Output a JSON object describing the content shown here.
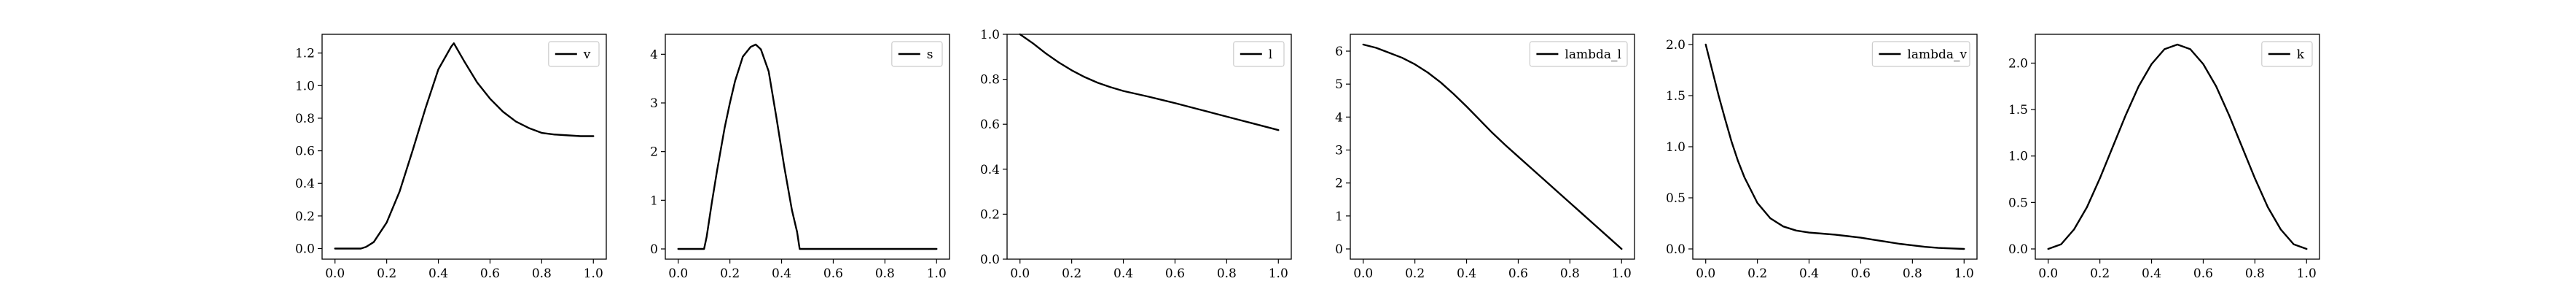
{
  "chart_data": [
    {
      "type": "line",
      "legend": "v",
      "legend_position": "top-right",
      "xlim": [
        -0.05,
        1.05
      ],
      "ylim": [
        -0.065,
        1.315
      ],
      "xticks": [
        "0.0",
        "0.2",
        "0.4",
        "0.6",
        "0.8",
        "1.0"
      ],
      "yticks": [
        "0.0",
        "0.2",
        "0.4",
        "0.6",
        "0.8",
        "1.0",
        "1.2"
      ],
      "series": [
        {
          "name": "v",
          "x": [
            0,
            0.05,
            0.1,
            0.12,
            0.15,
            0.2,
            0.25,
            0.3,
            0.35,
            0.4,
            0.45,
            0.46,
            0.5,
            0.55,
            0.6,
            0.65,
            0.7,
            0.75,
            0.8,
            0.85,
            0.9,
            0.95,
            1.0
          ],
          "y": [
            0,
            0,
            0,
            0.01,
            0.04,
            0.16,
            0.35,
            0.6,
            0.86,
            1.1,
            1.24,
            1.26,
            1.15,
            1.02,
            0.92,
            0.84,
            0.78,
            0.74,
            0.71,
            0.7,
            0.695,
            0.69,
            0.69
          ]
        }
      ]
    },
    {
      "type": "line",
      "legend": "s",
      "legend_position": "top-right",
      "xlim": [
        -0.05,
        1.05
      ],
      "ylim": [
        -0.21,
        4.41
      ],
      "xticks": [
        "0.0",
        "0.2",
        "0.4",
        "0.6",
        "0.8",
        "1.0"
      ],
      "yticks": [
        "0",
        "1",
        "2",
        "3",
        "4"
      ],
      "series": [
        {
          "name": "s",
          "x": [
            0,
            0.05,
            0.1,
            0.11,
            0.13,
            0.15,
            0.18,
            0.2,
            0.22,
            0.25,
            0.28,
            0.3,
            0.32,
            0.35,
            0.38,
            0.41,
            0.44,
            0.46,
            0.47,
            0.5,
            0.6,
            0.7,
            0.8,
            0.9,
            1.0
          ],
          "y": [
            0,
            0,
            0,
            0.25,
            0.95,
            1.6,
            2.5,
            3.0,
            3.45,
            3.95,
            4.15,
            4.2,
            4.1,
            3.65,
            2.7,
            1.7,
            0.8,
            0.35,
            0,
            0,
            0,
            0,
            0,
            0,
            0
          ]
        }
      ]
    },
    {
      "type": "line",
      "legend": "l",
      "legend_position": "top-right",
      "xlim": [
        -0.05,
        1.05
      ],
      "ylim": [
        0.0,
        1.0
      ],
      "xticks": [
        "0.0",
        "0.2",
        "0.4",
        "0.6",
        "0.8",
        "1.0"
      ],
      "yticks": [
        "0.0",
        "0.2",
        "0.4",
        "0.6",
        "0.8",
        "1.0"
      ],
      "series": [
        {
          "name": "l",
          "x": [
            0,
            0.05,
            0.1,
            0.15,
            0.2,
            0.25,
            0.3,
            0.35,
            0.4,
            0.45,
            0.5,
            0.55,
            0.6,
            0.65,
            0.7,
            0.75,
            0.8,
            0.85,
            0.9,
            0.95,
            1.0
          ],
          "y": [
            1.0,
            0.96,
            0.915,
            0.875,
            0.84,
            0.81,
            0.785,
            0.765,
            0.748,
            0.735,
            0.722,
            0.708,
            0.694,
            0.679,
            0.664,
            0.649,
            0.634,
            0.619,
            0.604,
            0.589,
            0.574
          ]
        }
      ]
    },
    {
      "type": "line",
      "legend": "lambda_l",
      "legend_position": "top-right",
      "xlim": [
        -0.05,
        1.05
      ],
      "ylim": [
        -0.31,
        6.51
      ],
      "xticks": [
        "0.0",
        "0.2",
        "0.4",
        "0.6",
        "0.8",
        "1.0"
      ],
      "yticks": [
        "0",
        "1",
        "2",
        "3",
        "4",
        "5",
        "6"
      ],
      "series": [
        {
          "name": "lambda_l",
          "x": [
            0,
            0.05,
            0.1,
            0.15,
            0.2,
            0.25,
            0.3,
            0.35,
            0.4,
            0.45,
            0.5,
            0.55,
            0.6,
            0.65,
            0.7,
            0.75,
            0.8,
            0.85,
            0.9,
            0.95,
            1.0
          ],
          "y": [
            6.2,
            6.1,
            5.95,
            5.8,
            5.6,
            5.35,
            5.05,
            4.7,
            4.32,
            3.92,
            3.52,
            3.15,
            2.8,
            2.45,
            2.1,
            1.75,
            1.4,
            1.05,
            0.7,
            0.35,
            0
          ]
        }
      ]
    },
    {
      "type": "line",
      "legend": "lambda_v",
      "legend_position": "top-right",
      "xlim": [
        -0.05,
        1.05
      ],
      "ylim": [
        -0.1,
        2.1
      ],
      "xticks": [
        "0.0",
        "0.2",
        "0.4",
        "0.6",
        "0.8",
        "1.0"
      ],
      "yticks": [
        "0.0",
        "0.5",
        "1.0",
        "1.5",
        "2.0"
      ],
      "series": [
        {
          "name": "lambda_v",
          "x": [
            0,
            0.025,
            0.05,
            0.075,
            0.1,
            0.125,
            0.15,
            0.2,
            0.25,
            0.3,
            0.35,
            0.4,
            0.45,
            0.5,
            0.55,
            0.6,
            0.65,
            0.7,
            0.75,
            0.8,
            0.85,
            0.9,
            0.95,
            1.0
          ],
          "y": [
            2.0,
            1.75,
            1.5,
            1.27,
            1.05,
            0.86,
            0.7,
            0.45,
            0.3,
            0.22,
            0.18,
            0.16,
            0.15,
            0.14,
            0.125,
            0.11,
            0.09,
            0.07,
            0.05,
            0.035,
            0.02,
            0.01,
            0.005,
            0.0
          ]
        }
      ]
    },
    {
      "type": "line",
      "legend": "k",
      "legend_position": "top-right",
      "xlim": [
        -0.05,
        1.05
      ],
      "ylim": [
        -0.11,
        2.31
      ],
      "xticks": [
        "0.0",
        "0.2",
        "0.4",
        "0.6",
        "0.8",
        "1.0"
      ],
      "yticks": [
        "0.0",
        "0.5",
        "1.0",
        "1.5",
        "2.0"
      ],
      "series": [
        {
          "name": "k",
          "x": [
            0,
            0.05,
            0.1,
            0.15,
            0.2,
            0.25,
            0.3,
            0.35,
            0.4,
            0.45,
            0.5,
            0.55,
            0.6,
            0.65,
            0.7,
            0.75,
            0.8,
            0.85,
            0.9,
            0.95,
            1.0
          ],
          "y": [
            0,
            0.05,
            0.21,
            0.45,
            0.76,
            1.1,
            1.44,
            1.75,
            1.99,
            2.15,
            2.2,
            2.15,
            1.99,
            1.75,
            1.44,
            1.1,
            0.76,
            0.45,
            0.21,
            0.05,
            0
          ]
        }
      ]
    }
  ]
}
